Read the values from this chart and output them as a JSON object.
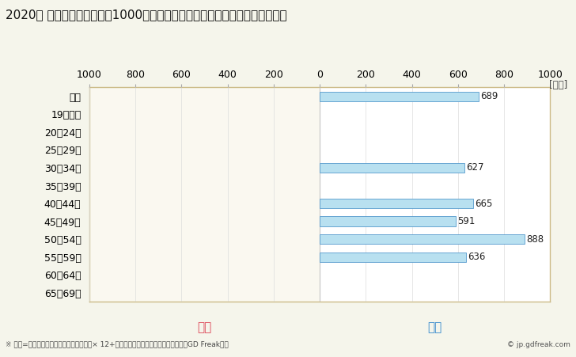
{
  "title": "2020年 民間企業（従業者数1000人以上）フルタイム労働者の男女別平均年収",
  "ylabel_unit": "[万円]",
  "footnote": "※ 年収=「きまって支給する現金給与額」× 12+「年間賞与その他特別給与額」としてGD Freak推計",
  "copyright": "© jp.gdfreak.com",
  "categories": [
    "全体",
    "19歳以下",
    "20〜24歳",
    "25〜29歳",
    "30〜34歳",
    "35〜39歳",
    "40〜44歳",
    "45〜49歳",
    "50〜54歳",
    "55〜59歳",
    "60〜64歳",
    "65〜69歳"
  ],
  "male_values": [
    689,
    0,
    0,
    0,
    627,
    0,
    665,
    591,
    888,
    636,
    0,
    0
  ],
  "female_values": [
    0,
    0,
    0,
    0,
    0,
    0,
    0,
    0,
    0,
    0,
    0,
    0
  ],
  "male_color": "#b8e0f0",
  "male_edge_color": "#5599cc",
  "female_color": "#b8e0f0",
  "female_edge_color": "#5599cc",
  "male_label": "男性",
  "female_label": "女性",
  "male_label_color": "#3388cc",
  "female_label_color": "#dd4455",
  "xlim": 1000,
  "bar_height": 0.55,
  "fig_bg": "#f5f5eb",
  "left_bg": "#faf8f0",
  "right_bg": "#ffffff",
  "border_color": "#ccbb88",
  "grid_color": "#dddddd",
  "title_fontsize": 11,
  "tick_fontsize": 9,
  "label_fontsize": 11,
  "annotation_fontsize": 8.5
}
